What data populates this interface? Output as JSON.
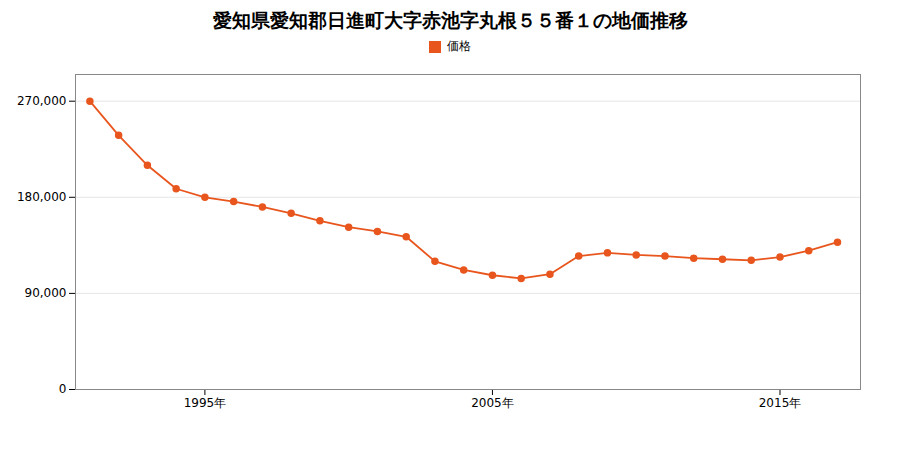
{
  "chart_data": {
    "type": "line",
    "title": "愛知県愛知郡日進町大字赤池字丸根５５番１の地価推移",
    "x": [
      1991,
      1992,
      1993,
      1994,
      1995,
      1996,
      1997,
      1998,
      1999,
      2000,
      2001,
      2002,
      2003,
      2004,
      2005,
      2006,
      2007,
      2008,
      2009,
      2010,
      2011,
      2012,
      2013,
      2014,
      2015,
      2016,
      2017
    ],
    "series": [
      {
        "name": "価格",
        "color": "#e8561e",
        "marker": "circle",
        "values": [
          270000,
          238000,
          210000,
          188000,
          180000,
          176000,
          171000,
          165000,
          158000,
          152000,
          148000,
          143000,
          120000,
          112000,
          107000,
          104000,
          108000,
          125000,
          128000,
          126000,
          125000,
          123000,
          122000,
          121000,
          124000,
          130000,
          138000
        ]
      }
    ],
    "xlim": [
      1990.5,
      2017.8
    ],
    "xticks": [
      {
        "value": 1995,
        "label": "1995年"
      },
      {
        "value": 2005,
        "label": "2005年"
      },
      {
        "value": 2015,
        "label": "2015年"
      }
    ],
    "ylim": [
      0,
      295000
    ],
    "yticks": [
      0,
      {
        "value": 90000,
        "label": "90,000"
      },
      {
        "value": 180000,
        "label": "180,000"
      },
      {
        "value": 270000,
        "label": "270,000"
      }
    ],
    "grid": "y",
    "legend": "top"
  }
}
